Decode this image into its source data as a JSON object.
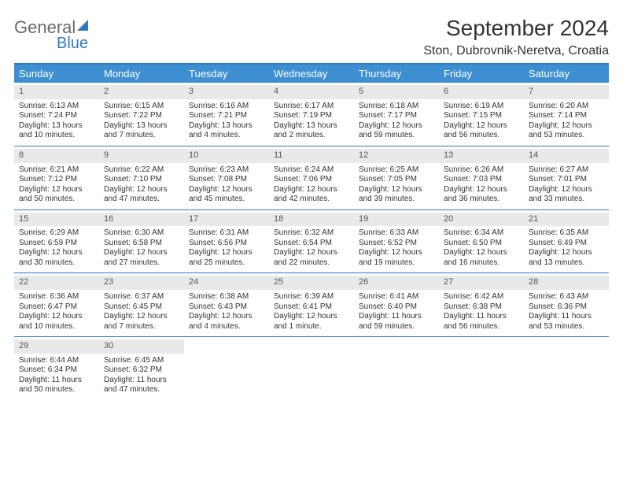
{
  "logo": {
    "word1": "General",
    "word2": "Blue"
  },
  "title": "September 2024",
  "subtitle": "Ston, Dubrovnik-Neretva, Croatia",
  "colors": {
    "accent": "#2f7bbf",
    "header_bg": "#3d8fd1",
    "daynum_bg": "#e9e9e9",
    "text": "#333333"
  },
  "day_headers": [
    "Sunday",
    "Monday",
    "Tuesday",
    "Wednesday",
    "Thursday",
    "Friday",
    "Saturday"
  ],
  "weeks": [
    [
      {
        "n": "1",
        "sr": "6:13 AM",
        "ss": "7:24 PM",
        "dl": "13 hours and 10 minutes."
      },
      {
        "n": "2",
        "sr": "6:15 AM",
        "ss": "7:22 PM",
        "dl": "13 hours and 7 minutes."
      },
      {
        "n": "3",
        "sr": "6:16 AM",
        "ss": "7:21 PM",
        "dl": "13 hours and 4 minutes."
      },
      {
        "n": "4",
        "sr": "6:17 AM",
        "ss": "7:19 PM",
        "dl": "13 hours and 2 minutes."
      },
      {
        "n": "5",
        "sr": "6:18 AM",
        "ss": "7:17 PM",
        "dl": "12 hours and 59 minutes."
      },
      {
        "n": "6",
        "sr": "6:19 AM",
        "ss": "7:15 PM",
        "dl": "12 hours and 56 minutes."
      },
      {
        "n": "7",
        "sr": "6:20 AM",
        "ss": "7:14 PM",
        "dl": "12 hours and 53 minutes."
      }
    ],
    [
      {
        "n": "8",
        "sr": "6:21 AM",
        "ss": "7:12 PM",
        "dl": "12 hours and 50 minutes."
      },
      {
        "n": "9",
        "sr": "6:22 AM",
        "ss": "7:10 PM",
        "dl": "12 hours and 47 minutes."
      },
      {
        "n": "10",
        "sr": "6:23 AM",
        "ss": "7:08 PM",
        "dl": "12 hours and 45 minutes."
      },
      {
        "n": "11",
        "sr": "6:24 AM",
        "ss": "7:06 PM",
        "dl": "12 hours and 42 minutes."
      },
      {
        "n": "12",
        "sr": "6:25 AM",
        "ss": "7:05 PM",
        "dl": "12 hours and 39 minutes."
      },
      {
        "n": "13",
        "sr": "6:26 AM",
        "ss": "7:03 PM",
        "dl": "12 hours and 36 minutes."
      },
      {
        "n": "14",
        "sr": "6:27 AM",
        "ss": "7:01 PM",
        "dl": "12 hours and 33 minutes."
      }
    ],
    [
      {
        "n": "15",
        "sr": "6:29 AM",
        "ss": "6:59 PM",
        "dl": "12 hours and 30 minutes."
      },
      {
        "n": "16",
        "sr": "6:30 AM",
        "ss": "6:58 PM",
        "dl": "12 hours and 27 minutes."
      },
      {
        "n": "17",
        "sr": "6:31 AM",
        "ss": "6:56 PM",
        "dl": "12 hours and 25 minutes."
      },
      {
        "n": "18",
        "sr": "6:32 AM",
        "ss": "6:54 PM",
        "dl": "12 hours and 22 minutes."
      },
      {
        "n": "19",
        "sr": "6:33 AM",
        "ss": "6:52 PM",
        "dl": "12 hours and 19 minutes."
      },
      {
        "n": "20",
        "sr": "6:34 AM",
        "ss": "6:50 PM",
        "dl": "12 hours and 16 minutes."
      },
      {
        "n": "21",
        "sr": "6:35 AM",
        "ss": "6:49 PM",
        "dl": "12 hours and 13 minutes."
      }
    ],
    [
      {
        "n": "22",
        "sr": "6:36 AM",
        "ss": "6:47 PM",
        "dl": "12 hours and 10 minutes."
      },
      {
        "n": "23",
        "sr": "6:37 AM",
        "ss": "6:45 PM",
        "dl": "12 hours and 7 minutes."
      },
      {
        "n": "24",
        "sr": "6:38 AM",
        "ss": "6:43 PM",
        "dl": "12 hours and 4 minutes."
      },
      {
        "n": "25",
        "sr": "6:39 AM",
        "ss": "6:41 PM",
        "dl": "12 hours and 1 minute."
      },
      {
        "n": "26",
        "sr": "6:41 AM",
        "ss": "6:40 PM",
        "dl": "11 hours and 59 minutes."
      },
      {
        "n": "27",
        "sr": "6:42 AM",
        "ss": "6:38 PM",
        "dl": "11 hours and 56 minutes."
      },
      {
        "n": "28",
        "sr": "6:43 AM",
        "ss": "6:36 PM",
        "dl": "11 hours and 53 minutes."
      }
    ],
    [
      {
        "n": "29",
        "sr": "6:44 AM",
        "ss": "6:34 PM",
        "dl": "11 hours and 50 minutes."
      },
      {
        "n": "30",
        "sr": "6:45 AM",
        "ss": "6:32 PM",
        "dl": "11 hours and 47 minutes."
      },
      null,
      null,
      null,
      null,
      null
    ]
  ],
  "labels": {
    "sunrise": "Sunrise:",
    "sunset": "Sunset:",
    "daylight": "Daylight:"
  }
}
